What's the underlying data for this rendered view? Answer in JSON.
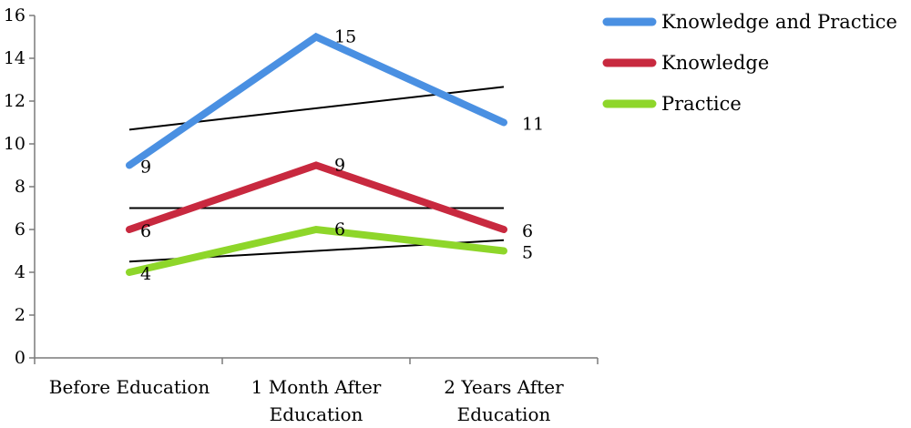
{
  "chart_data": {
    "type": "line",
    "title": "",
    "xlabel": "",
    "ylabel": "",
    "categories": [
      "Before Education",
      "1 Month After Education",
      "2 Years After Education"
    ],
    "category_lines": [
      [
        "Before Education"
      ],
      [
        "1 Month After",
        "Education"
      ],
      [
        "2 Years After",
        "Education"
      ]
    ],
    "ylim": [
      0,
      16
    ],
    "yticks": [
      "0",
      "2",
      "4",
      "6",
      "8",
      "10",
      "12",
      "14",
      "16"
    ],
    "grid": false,
    "legend_position": "top-right",
    "series": [
      {
        "name": "Knowledge and Practice",
        "color": "#4a90e2",
        "values": [
          9,
          15,
          11
        ],
        "labels": [
          "9",
          "15",
          "11"
        ],
        "trendline": [
          10.6667,
          11.6667,
          12.6667
        ]
      },
      {
        "name": "Knowledge",
        "color": "#c8293f",
        "values": [
          6,
          9,
          6
        ],
        "labels": [
          "6",
          "9",
          "6"
        ],
        "trendline": [
          7,
          7,
          7
        ]
      },
      {
        "name": "Practice",
        "color": "#8ed62a",
        "values": [
          4,
          6,
          5
        ],
        "labels": [
          "4",
          "6",
          "5"
        ],
        "trendline": [
          4.5,
          5,
          5.5
        ]
      }
    ],
    "trendline_color": "#000000"
  }
}
